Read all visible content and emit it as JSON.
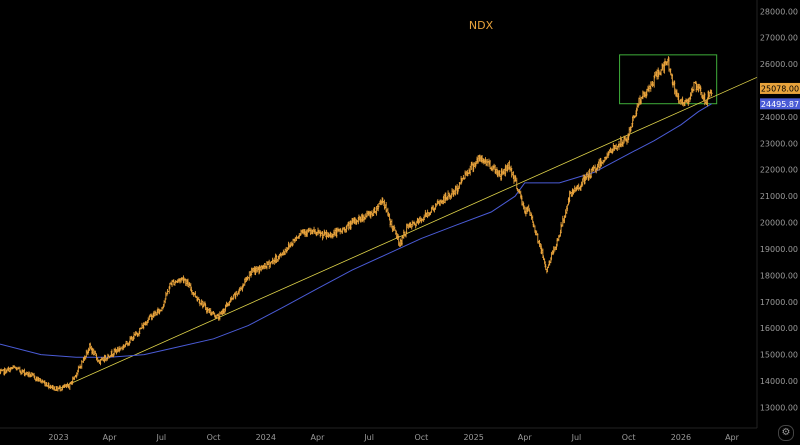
{
  "chart_data": {
    "type": "line",
    "title": "NDX",
    "x_axis": {
      "ticks": [
        "2023",
        "Apr",
        "Jul",
        "Oct",
        "2024",
        "Apr",
        "Jul",
        "Oct",
        "2025",
        "Apr",
        "Jul",
        "Oct",
        "2026",
        "Apr"
      ],
      "tick_dates": [
        "2023-01-01",
        "2023-04-01",
        "2023-07-01",
        "2023-10-01",
        "2024-01-01",
        "2024-04-01",
        "2024-07-01",
        "2024-10-01",
        "2025-01-01",
        "2025-04-01",
        "2025-07-01",
        "2025-10-01",
        "2026-01-01",
        "2026-04-01"
      ],
      "range": [
        "2022-09-20",
        "2026-05-15"
      ]
    },
    "y_axis": {
      "ticks": [
        "13000.00",
        "14000.00",
        "15000.00",
        "16000.00",
        "17000.00",
        "18000.00",
        "19000.00",
        "20000.00",
        "21000.00",
        "22000.00",
        "23000.00",
        "24000.00",
        "25000.00",
        "26000.00",
        "27000.00",
        "28000.00"
      ],
      "ylim": [
        12600,
        28200
      ],
      "position": "right"
    },
    "grid": false,
    "colors": {
      "background": "#000000",
      "price": "#e8a33c",
      "moving_average": "#4a5bd6",
      "trendline": "#e0d44a",
      "range_box": "#3fae3a"
    },
    "series": [
      {
        "role": "price",
        "style": "bars",
        "x": [
          "2022-09-20",
          "2022-10-15",
          "2022-11-15",
          "2022-12-10",
          "2022-12-28",
          "2023-01-20",
          "2023-02-05",
          "2023-02-25",
          "2023-03-15",
          "2023-04-01",
          "2023-04-25",
          "2023-05-20",
          "2023-06-10",
          "2023-07-01",
          "2023-07-18",
          "2023-08-10",
          "2023-08-28",
          "2023-09-20",
          "2023-10-10",
          "2023-10-26",
          "2023-11-15",
          "2023-12-05",
          "2023-12-28",
          "2024-01-25",
          "2024-02-15",
          "2024-03-05",
          "2024-03-28",
          "2024-04-19",
          "2024-05-15",
          "2024-06-10",
          "2024-07-10",
          "2024-07-25",
          "2024-08-06",
          "2024-08-25",
          "2024-09-06",
          "2024-09-25",
          "2024-10-15",
          "2024-11-05",
          "2024-12-01",
          "2024-12-16",
          "2025-01-10",
          "2025-01-25",
          "2025-02-18",
          "2025-03-05",
          "2025-03-20",
          "2025-04-02",
          "2025-04-08",
          "2025-04-22",
          "2025-05-10",
          "2025-05-30",
          "2025-06-20",
          "2025-07-15",
          "2025-08-10",
          "2025-09-05",
          "2025-09-30",
          "2025-10-10",
          "2025-10-20",
          "2025-11-05",
          "2025-11-20",
          "2025-12-10",
          "2025-12-25",
          "2026-01-10",
          "2026-01-25",
          "2026-02-06",
          "2026-02-14",
          "2026-02-24"
        ],
        "values": [
          14300,
          14500,
          14200,
          13900,
          13700,
          13800,
          14400,
          15300,
          14700,
          15000,
          15300,
          15800,
          16400,
          16700,
          17700,
          17900,
          17300,
          16700,
          16400,
          16900,
          17400,
          18100,
          18300,
          18700,
          19200,
          19700,
          19600,
          19500,
          19700,
          20100,
          20400,
          20900,
          20100,
          19200,
          19800,
          20000,
          20400,
          20800,
          21200,
          21800,
          22400,
          22300,
          21800,
          22200,
          21300,
          20400,
          20500,
          19600,
          18200,
          19400,
          21000,
          21600,
          22200,
          22800,
          23200,
          24000,
          24600,
          25000,
          25600,
          26100,
          24700,
          24500,
          25200,
          24900,
          24600,
          25000
        ]
      },
      {
        "role": "moving-average",
        "x": [
          "2022-09-20",
          "2022-12-01",
          "2023-02-01",
          "2023-04-01",
          "2023-06-01",
          "2023-08-01",
          "2023-10-01",
          "2023-12-01",
          "2024-02-01",
          "2024-04-01",
          "2024-06-01",
          "2024-08-01",
          "2024-10-01",
          "2024-12-01",
          "2025-02-01",
          "2025-03-15",
          "2025-04-01",
          "2025-04-25",
          "2025-06-01",
          "2025-08-01",
          "2025-10-01",
          "2025-11-15",
          "2026-01-01",
          "2026-02-01",
          "2026-02-24"
        ],
        "values": [
          15400,
          15000,
          14900,
          14900,
          15000,
          15300,
          15600,
          16100,
          16800,
          17500,
          18200,
          18800,
          19400,
          19900,
          20400,
          21000,
          21500,
          21500,
          21500,
          21900,
          22600,
          23100,
          23700,
          24200,
          24496
        ]
      }
    ],
    "trendline": {
      "start": {
        "x": "2023-01-01",
        "y": 13700
      },
      "end": {
        "x": "2026-05-15",
        "y": 25500
      }
    },
    "range_box": {
      "x": [
        "2025-09-15",
        "2026-03-05"
      ],
      "y": [
        24500,
        26350
      ]
    },
    "price_labels": [
      {
        "role": "last-price",
        "text": "25078.00",
        "value": 25078,
        "background": "#e8a33c",
        "color": "#000000"
      },
      {
        "role": "moving-average",
        "text": "24495.87",
        "value": 24495.87,
        "background": "#4a5bd6",
        "color": "#ffffff"
      }
    ]
  }
}
